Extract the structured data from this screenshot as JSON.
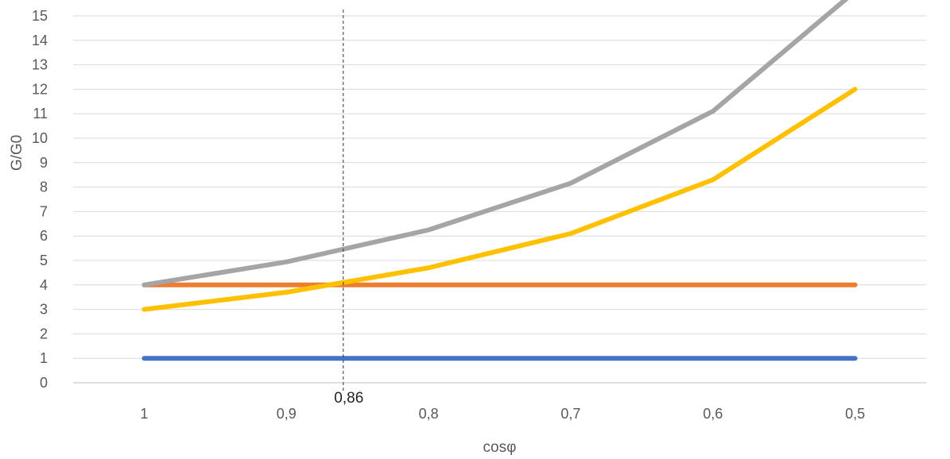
{
  "chart_data": {
    "type": "line",
    "xlabel": "cosφ",
    "ylabel": "G/G0",
    "ylim": [
      0,
      15
    ],
    "yticks": [
      "0",
      "1",
      "2",
      "3",
      "4",
      "5",
      "6",
      "7",
      "8",
      "9",
      "10",
      "11",
      "12",
      "13",
      "14",
      "15"
    ],
    "categories": [
      "1",
      "0,9",
      "0,8",
      "0,7",
      "0,6",
      "0,5"
    ],
    "grid": true,
    "legend": "none",
    "series": [
      {
        "color": "#4472C4",
        "values": [
          1,
          1,
          1,
          1,
          1,
          1
        ]
      },
      {
        "color": "#ED7D31",
        "values": [
          4,
          4,
          4,
          4,
          4,
          4
        ]
      },
      {
        "color": "#FFC000",
        "values": [
          3,
          3.7,
          4.7,
          6.1,
          8.3,
          12
        ]
      },
      {
        "color": "#A5A5A5",
        "values": [
          4,
          4.94,
          6.25,
          8.16,
          11.1,
          16
        ]
      }
    ],
    "annotation": {
      "label": "0,86",
      "x": 0.86
    }
  }
}
